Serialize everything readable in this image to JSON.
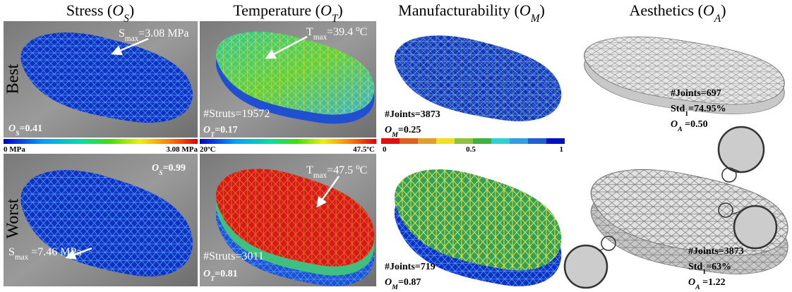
{
  "headers": [
    {
      "parts": [
        {
          "t": "Stress ("
        },
        {
          "t": "O",
          "italic": true
        },
        {
          "t": "S",
          "italic": true,
          "sub": true
        },
        {
          "t": ")"
        }
      ]
    },
    {
      "parts": [
        {
          "t": "Temperature ("
        },
        {
          "t": "O",
          "italic": true
        },
        {
          "t": "T",
          "italic": true,
          "sub": true
        },
        {
          "t": ")"
        }
      ]
    },
    {
      "parts": [
        {
          "t": "Manufacturability ("
        },
        {
          "t": "O",
          "italic": true
        },
        {
          "t": "M",
          "italic": true,
          "sub": true
        },
        {
          "t": ")"
        }
      ]
    },
    {
      "parts": [
        {
          "t": "Aesthetics ("
        },
        {
          "t": "O",
          "italic": true
        },
        {
          "t": "A",
          "italic": true,
          "sub": true
        },
        {
          "t": ")"
        }
      ]
    }
  ],
  "rows": [
    "Best",
    "Worst"
  ],
  "colorbars": [
    {
      "labels": [
        "0 MPa",
        "3.08 MPa"
      ]
    },
    {
      "labels": [
        "20ºC",
        "47.5ºC"
      ]
    },
    {
      "labels": [
        "0",
        "0.5",
        "1"
      ]
    }
  ],
  "panels": [
    {
      "annotations": [
        {
          "parts": [
            {
              "t": "S"
            },
            {
              "t": "max",
              "sub": true
            },
            {
              "t": "=3.08 MPa"
            }
          ]
        },
        {
          "parts": [
            {
              "t": "O",
              "italic": true,
              "bold": true
            },
            {
              "t": "S",
              "italic": true,
              "bold": true,
              "sub": true
            },
            {
              "t": "=0.41",
              "bold": true
            }
          ]
        }
      ]
    },
    {
      "annotations": [
        {
          "parts": [
            {
              "t": "T"
            },
            {
              "t": "max",
              "sub": true
            },
            {
              "t": "=39.4 "
            },
            {
              "t": "o",
              "sup": true
            },
            {
              "t": "C"
            }
          ]
        },
        {
          "parts": [
            {
              "t": "#Struts=19572"
            }
          ]
        },
        {
          "parts": [
            {
              "t": "O",
              "italic": true,
              "bold": true
            },
            {
              "t": "T",
              "italic": true,
              "bold": true,
              "sub": true
            },
            {
              "t": "=0.17",
              "bold": true
            }
          ]
        }
      ]
    },
    {
      "annotations": [
        {
          "parts": [
            {
              "t": "#Joints=3873",
              "bold": true
            }
          ]
        },
        {
          "parts": [
            {
              "t": "O",
              "italic": true,
              "bold": true
            },
            {
              "t": "M",
              "italic": true,
              "bold": true,
              "sub": true
            },
            {
              "t": "=0.25",
              "bold": true
            }
          ]
        }
      ]
    },
    {
      "annotations": [
        {
          "parts": [
            {
              "t": "#Joints=697",
              "bold": true
            }
          ]
        },
        {
          "parts": [
            {
              "t": "Std",
              "bold": true
            },
            {
              "t": "1",
              "bold": true,
              "sub": true
            },
            {
              "t": "=74.95%",
              "bold": true
            }
          ]
        },
        {
          "parts": [
            {
              "t": "O",
              "italic": true,
              "bold": true
            },
            {
              "t": "A",
              "italic": true,
              "bold": true,
              "sub": true
            },
            {
              "t": " =0.50",
              "bold": true
            }
          ]
        }
      ]
    },
    {
      "annotations": [
        {
          "parts": [
            {
              "t": "O",
              "italic": true,
              "bold": true
            },
            {
              "t": "S",
              "italic": true,
              "bold": true,
              "sub": true
            },
            {
              "t": "=0.99",
              "bold": true
            }
          ]
        },
        {
          "parts": [
            {
              "t": "S"
            },
            {
              "t": "max",
              "sub": true
            },
            {
              "t": " =7.46 MPa"
            }
          ]
        }
      ]
    },
    {
      "annotations": [
        {
          "parts": [
            {
              "t": "T"
            },
            {
              "t": "max",
              "sub": true
            },
            {
              "t": "=47.5 "
            },
            {
              "t": "o",
              "sup": true
            },
            {
              "t": "C"
            }
          ]
        },
        {
          "parts": [
            {
              "t": "#Struts=3011"
            }
          ]
        },
        {
          "parts": [
            {
              "t": "O",
              "italic": true,
              "bold": true
            },
            {
              "t": "T",
              "italic": true,
              "bold": true,
              "sub": true
            },
            {
              "t": "=0.81",
              "bold": true
            }
          ]
        }
      ]
    },
    {
      "annotations": [
        {
          "parts": [
            {
              "t": "#Joints=719",
              "bold": true
            }
          ]
        },
        {
          "parts": [
            {
              "t": "O",
              "italic": true,
              "bold": true
            },
            {
              "t": "M",
              "italic": true,
              "bold": true,
              "sub": true
            },
            {
              "t": "=0.87",
              "bold": true
            }
          ]
        }
      ]
    },
    {
      "annotations": [
        {
          "parts": [
            {
              "t": "#Joints=3873",
              "bold": true
            }
          ]
        },
        {
          "parts": [
            {
              "t": "Std",
              "bold": true
            },
            {
              "t": "1",
              "bold": true,
              "sub": true
            },
            {
              "t": "=63%",
              "bold": true
            }
          ]
        },
        {
          "parts": [
            {
              "t": "O",
              "italic": true,
              "bold": true
            },
            {
              "t": "A",
              "italic": true,
              "bold": true,
              "sub": true
            },
            {
              "t": " =1.22",
              "bold": true
            }
          ]
        }
      ]
    }
  ]
}
